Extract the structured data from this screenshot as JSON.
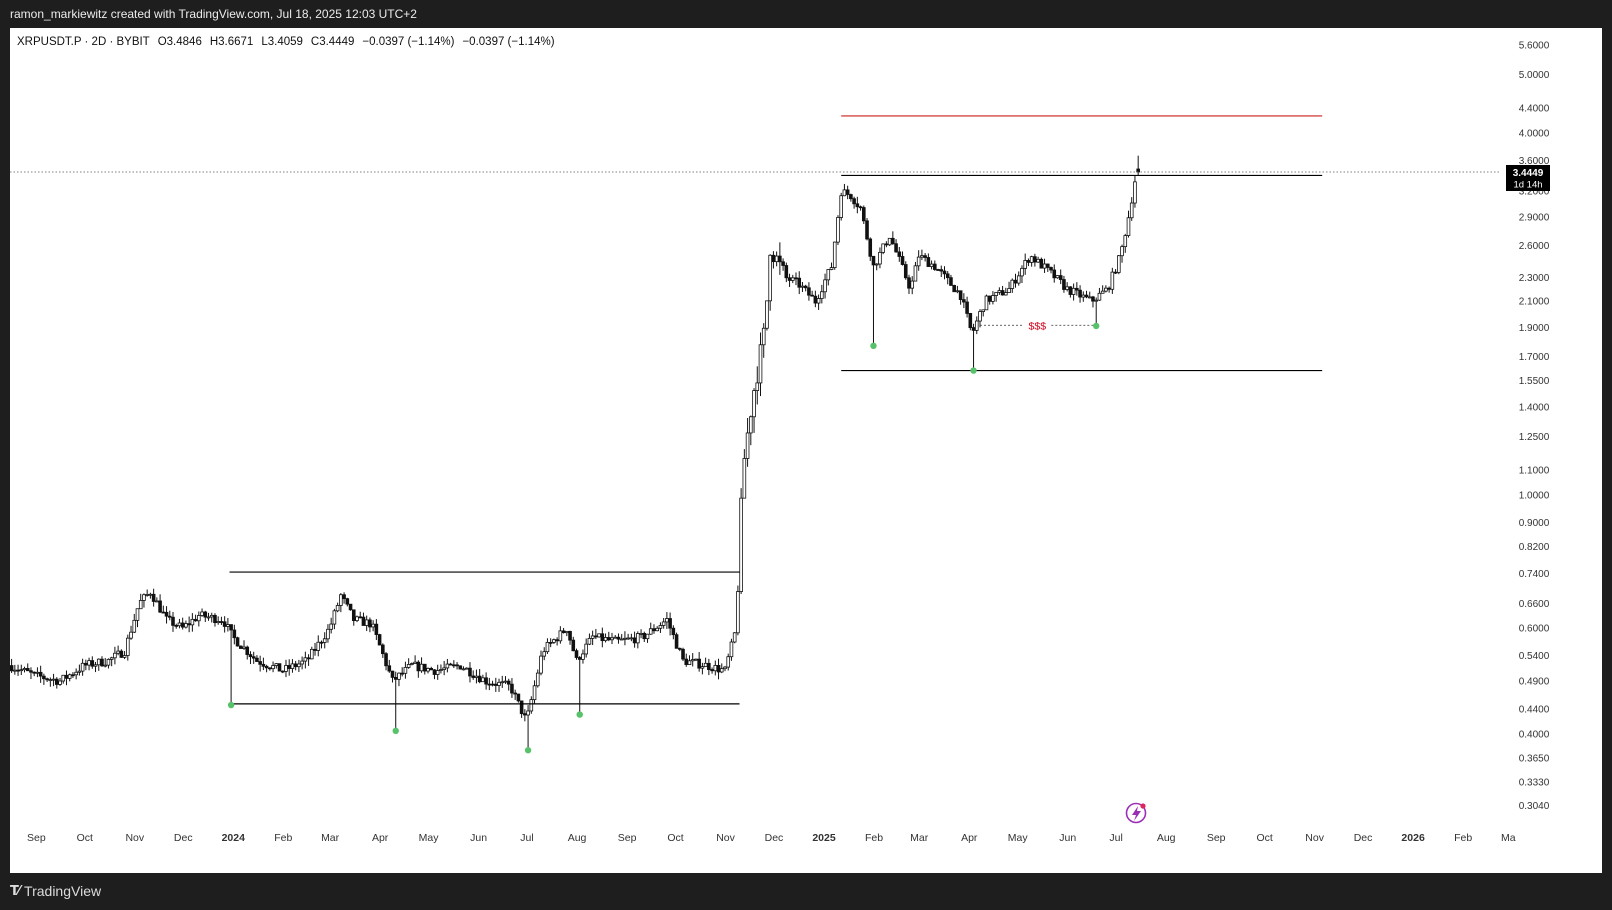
{
  "header": {
    "attribution": "ramon_markiewitz created with TradingView.com, Jul 18, 2025 12:03 UTC+2"
  },
  "footer": {
    "brand": "TradingView"
  },
  "colors": {
    "candle": "#111111",
    "support_line": "#000000",
    "target_line": "#cc1f1f",
    "liquidity_label": "#d0021b",
    "marker_dot": "#58c26a",
    "price_tag_bg": "#000000",
    "price_tag_text": "#ffffff",
    "axis_text": "#333333",
    "frame": "#1e1e1e",
    "lightning": "#9b2fb4"
  },
  "icons": {
    "lightning_badge": "lightning-bolt-icon",
    "brand_logo": "tradingview-logo-icon"
  },
  "chart_data": {
    "type": "candlestick",
    "symbol_line": "XRPUSDT.P · 2D · BYBIT",
    "ohlc": {
      "open": "O3.4846",
      "high": "H3.6671",
      "low": "L3.4059",
      "close": "C3.4449",
      "change": "−0.0397 (−1.14%)",
      "change_repeat": "−0.0397 (−1.14%)"
    },
    "y_scale": "log",
    "ylim": [
      0.29,
      5.8
    ],
    "y_ticks": [
      "5.6000",
      "5.0000",
      "4.4000",
      "4.0000",
      "3.6000",
      "3.2000",
      "2.9000",
      "2.6000",
      "2.3000",
      "2.1000",
      "1.9000",
      "1.7000",
      "1.5500",
      "1.4000",
      "1.2500",
      "1.1000",
      "1.0000",
      "0.9000",
      "0.8200",
      "0.7400",
      "0.6600",
      "0.6000",
      "0.5400",
      "0.4900",
      "0.4400",
      "0.4000",
      "0.3650",
      "0.3330",
      "0.3040"
    ],
    "x_ticks": [
      {
        "label": "Sep",
        "bold": false
      },
      {
        "label": "Oct",
        "bold": false
      },
      {
        "label": "Nov",
        "bold": false
      },
      {
        "label": "Dec",
        "bold": false
      },
      {
        "label": "2024",
        "bold": true
      },
      {
        "label": "Feb",
        "bold": false
      },
      {
        "label": "Mar",
        "bold": false
      },
      {
        "label": "Apr",
        "bold": false
      },
      {
        "label": "May",
        "bold": false
      },
      {
        "label": "Jun",
        "bold": false
      },
      {
        "label": "Jul",
        "bold": false
      },
      {
        "label": "Aug",
        "bold": false
      },
      {
        "label": "Sep",
        "bold": false
      },
      {
        "label": "Oct",
        "bold": false
      },
      {
        "label": "Nov",
        "bold": false
      },
      {
        "label": "Dec",
        "bold": false
      },
      {
        "label": "2025",
        "bold": true
      },
      {
        "label": "Feb",
        "bold": false
      },
      {
        "label": "Mar",
        "bold": false
      },
      {
        "label": "Apr",
        "bold": false
      },
      {
        "label": "May",
        "bold": false
      },
      {
        "label": "Jun",
        "bold": false
      },
      {
        "label": "Jul",
        "bold": false
      },
      {
        "label": "Aug",
        "bold": false
      },
      {
        "label": "Sep",
        "bold": false
      },
      {
        "label": "Oct",
        "bold": false
      },
      {
        "label": "Nov",
        "bold": false
      },
      {
        "label": "Dec",
        "bold": false
      },
      {
        "label": "2026",
        "bold": true
      },
      {
        "label": "Feb",
        "bold": false
      },
      {
        "label": "Ma",
        "bold": false
      }
    ],
    "last_price": {
      "value": 3.4449,
      "label": "3.4449",
      "countdown": "1d 14h"
    },
    "price_path": [
      [
        "2023-08-20",
        0.52
      ],
      [
        "2023-09-05",
        0.5
      ],
      [
        "2023-09-20",
        0.49
      ],
      [
        "2023-10-05",
        0.52
      ],
      [
        "2023-10-20",
        0.53
      ],
      [
        "2023-10-30",
        0.55
      ],
      [
        "2023-11-08",
        0.66
      ],
      [
        "2023-11-15",
        0.69
      ],
      [
        "2023-11-25",
        0.62
      ],
      [
        "2023-12-05",
        0.6
      ],
      [
        "2023-12-15",
        0.63
      ],
      [
        "2023-12-30",
        0.62
      ],
      [
        "2024-01-05",
        0.58
      ],
      [
        "2024-01-20",
        0.53
      ],
      [
        "2024-02-05",
        0.51
      ],
      [
        "2024-02-20",
        0.53
      ],
      [
        "2024-03-05",
        0.6
      ],
      [
        "2024-03-12",
        0.68
      ],
      [
        "2024-03-20",
        0.62
      ],
      [
        "2024-03-31",
        0.61
      ],
      [
        "2024-04-13",
        0.49
      ],
      [
        "2024-04-25",
        0.52
      ],
      [
        "2024-05-10",
        0.51
      ],
      [
        "2024-05-25",
        0.52
      ],
      [
        "2024-06-10",
        0.49
      ],
      [
        "2024-06-25",
        0.48
      ],
      [
        "2024-07-05",
        0.42
      ],
      [
        "2024-07-15",
        0.55
      ],
      [
        "2024-07-30",
        0.6
      ],
      [
        "2024-08-05",
        0.53
      ],
      [
        "2024-08-15",
        0.58
      ],
      [
        "2024-08-30",
        0.57
      ],
      [
        "2024-09-15",
        0.58
      ],
      [
        "2024-09-30",
        0.62
      ],
      [
        "2024-10-10",
        0.53
      ],
      [
        "2024-10-25",
        0.52
      ],
      [
        "2024-11-05",
        0.51
      ],
      [
        "2024-11-12",
        0.6
      ],
      [
        "2024-11-16",
        1.1
      ],
      [
        "2024-11-22",
        1.45
      ],
      [
        "2024-11-30",
        1.9
      ],
      [
        "2024-12-03",
        2.6
      ],
      [
        "2024-12-12",
        2.3
      ],
      [
        "2024-12-20",
        2.25
      ],
      [
        "2024-12-31",
        2.1
      ],
      [
        "2025-01-10",
        2.4
      ],
      [
        "2025-01-16",
        3.2
      ],
      [
        "2025-01-22",
        3.15
      ],
      [
        "2025-01-28",
        3.0
      ],
      [
        "2025-02-05",
        2.4
      ],
      [
        "2025-02-15",
        2.7
      ],
      [
        "2025-02-28",
        2.2
      ],
      [
        "2025-03-05",
        2.5
      ],
      [
        "2025-03-15",
        2.4
      ],
      [
        "2025-03-31",
        2.15
      ],
      [
        "2025-04-07",
        1.85
      ],
      [
        "2025-04-15",
        2.1
      ],
      [
        "2025-04-30",
        2.2
      ],
      [
        "2025-05-13",
        2.5
      ],
      [
        "2025-05-25",
        2.35
      ],
      [
        "2025-06-05",
        2.2
      ],
      [
        "2025-06-20",
        2.1
      ],
      [
        "2025-06-30",
        2.2
      ],
      [
        "2025-07-08",
        2.5
      ],
      [
        "2025-07-13",
        2.9
      ],
      [
        "2025-07-18",
        3.45
      ]
    ],
    "spikes": [
      {
        "date": "2024-01-03",
        "low": 0.447
      },
      {
        "date": "2024-04-13",
        "low": 0.405
      },
      {
        "date": "2024-07-05",
        "low": 0.376
      },
      {
        "date": "2024-08-05",
        "low": 0.431
      },
      {
        "date": "2025-02-03",
        "low": 1.77
      },
      {
        "date": "2025-04-07",
        "low": 1.61
      },
      {
        "date": "2025-06-22",
        "low": 1.91
      }
    ],
    "marker_dates": [
      "2024-01-03",
      "2024-04-13",
      "2024-07-05",
      "2024-08-05",
      "2025-02-03",
      "2025-04-07",
      "2025-06-22"
    ],
    "drawings": {
      "range_2024_top": {
        "from": "2024-01-03",
        "to": "2024-11-14",
        "price": 0.744
      },
      "range_2024_bottom": {
        "from": "2024-01-03",
        "to": "2024-11-14",
        "price": 0.449
      },
      "range_2025_top": {
        "from": "2025-01-16",
        "to": "2025-11-10",
        "price": 3.4
      },
      "range_2025_bottom": {
        "from": "2025-01-16",
        "to": "2025-11-10",
        "price": 1.61
      },
      "target_line": {
        "from": "2025-01-16",
        "to": "2025-11-10",
        "price": 4.27
      },
      "liquidity": {
        "from": "2025-04-12",
        "to": "2025-06-22",
        "price": 1.915,
        "label": "$$$"
      }
    }
  }
}
